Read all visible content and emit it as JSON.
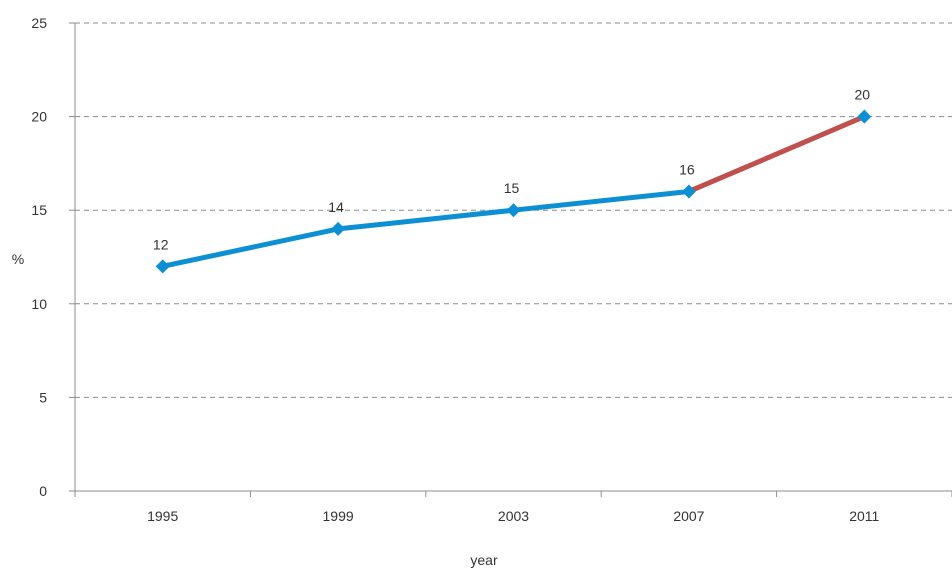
{
  "chart_data": {
    "type": "line",
    "title": "",
    "xlabel": "year",
    "ylabel": "%",
    "categories": [
      "1995",
      "1999",
      "2003",
      "2007",
      "2011"
    ],
    "ylim": [
      0,
      25
    ],
    "yticks": [
      "0",
      "5",
      "10",
      "15",
      "20",
      "25"
    ],
    "grid": true,
    "series": [
      {
        "values": [
          12,
          14,
          15,
          16,
          20
        ],
        "data_labels": [
          "12",
          "14",
          "15",
          "16",
          "20"
        ],
        "color": "#0d8fd4",
        "last_segment_color": "#c0504d",
        "marker": "diamond"
      }
    ]
  }
}
